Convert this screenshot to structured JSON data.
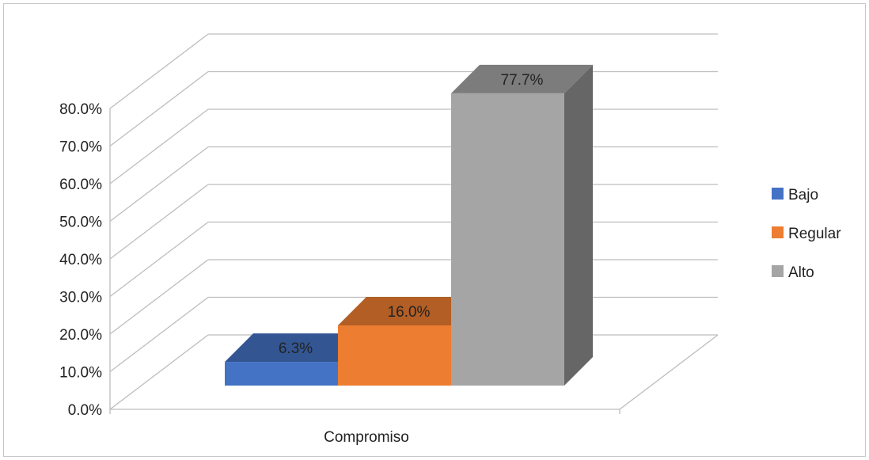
{
  "chart_data": {
    "type": "bar",
    "categories": [
      "Compromiso"
    ],
    "series": [
      {
        "name": "Bajo",
        "values": [
          6.3
        ],
        "label": "6.3%",
        "color": "#4472C4"
      },
      {
        "name": "Regular",
        "values": [
          16.0
        ],
        "label": "16.0%",
        "color": "#ED7D31"
      },
      {
        "name": "Alto",
        "values": [
          77.7
        ],
        "label": "77.7%",
        "color": "#A5A5A5"
      }
    ],
    "yticks": [
      "0.0%",
      "10.0%",
      "20.0%",
      "30.0%",
      "40.0%",
      "50.0%",
      "60.0%",
      "70.0%",
      "80.0%"
    ],
    "ylim": [
      0,
      80
    ],
    "title": "",
    "xlabel": "",
    "ylabel": "",
    "grid": true,
    "legend_position": "right",
    "three_d": true
  }
}
